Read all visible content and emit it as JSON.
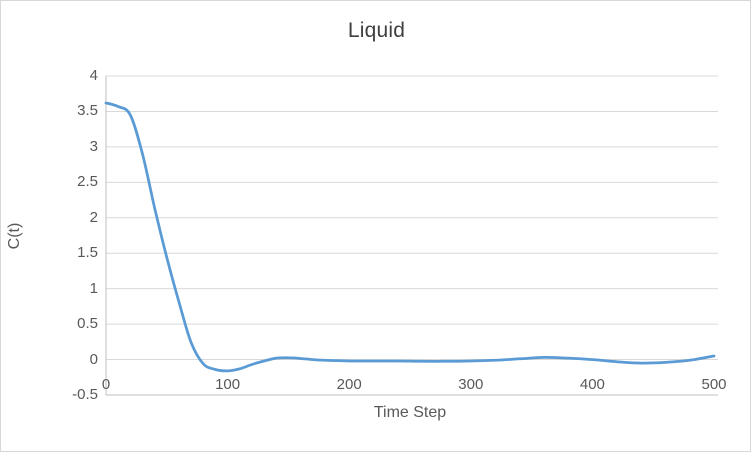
{
  "chart_data": {
    "type": "line",
    "title": "Liquid",
    "xlabel": "Time Step",
    "ylabel": "C(t)",
    "x": [
      0,
      10,
      20,
      30,
      40,
      50,
      60,
      70,
      80,
      90,
      100,
      110,
      120,
      130,
      140,
      150,
      160,
      170,
      180,
      190,
      200,
      220,
      240,
      260,
      280,
      300,
      320,
      340,
      360,
      380,
      400,
      420,
      440,
      460,
      480,
      500
    ],
    "y": [
      3.62,
      3.57,
      3.45,
      2.9,
      2.14,
      1.44,
      0.81,
      0.24,
      -0.06,
      -0.14,
      -0.16,
      -0.13,
      -0.07,
      -0.02,
      0.02,
      0.025,
      0.015,
      0.0,
      -0.01,
      -0.015,
      -0.02,
      -0.02,
      -0.02,
      -0.025,
      -0.025,
      -0.02,
      -0.01,
      0.01,
      0.03,
      0.02,
      0.0,
      -0.03,
      -0.05,
      -0.04,
      -0.01,
      0.05
    ],
    "xlim": [
      0,
      500
    ],
    "ylim": [
      -0.5,
      4
    ],
    "x_ticks": [
      0,
      100,
      200,
      300,
      400,
      500
    ],
    "x_tick_labels": [
      "0",
      "100",
      "200",
      "300",
      "400",
      "500"
    ],
    "y_ticks": [
      4,
      3.5,
      3,
      2.5,
      2,
      1.5,
      1,
      0.5,
      0,
      -0.5
    ],
    "y_tick_labels": [
      "4",
      "3.5",
      "3",
      "2.5",
      "2",
      "1.5",
      "1",
      "0.5",
      "0",
      "-0.5"
    ],
    "grid": "horizontal gridlines on",
    "legend_position": "none",
    "line_color": "#5B9BD5",
    "gridline_color": "#D9D9D9",
    "axis_color": "#BFBFBF",
    "tick_text_color": "#595959",
    "title_color": "#404040",
    "background_color": "#FFFFFF",
    "border_color": "#D7D7D7"
  }
}
